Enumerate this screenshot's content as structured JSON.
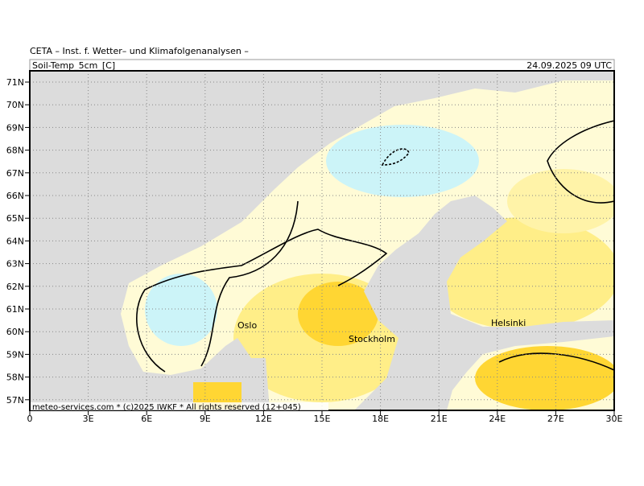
{
  "header": {
    "title": "CETA – Inst. f. Wetter– und Klimafolgenanalysen –",
    "parameter": "Soil-Temp_5cm_[C]",
    "valid_time": "24.09.2025 09 UTC"
  },
  "map": {
    "lat_labels": [
      "71N",
      "70N",
      "69N",
      "68N",
      "67N",
      "66N",
      "65N",
      "64N",
      "63N",
      "62N",
      "61N",
      "60N",
      "59N",
      "58N",
      "57N"
    ],
    "lon_labels": [
      "0",
      "3E",
      "6E",
      "9E",
      "12E",
      "15E",
      "18E",
      "21E",
      "24E",
      "27E",
      "30E"
    ],
    "cities": [
      "Oslo",
      "Stockholm",
      "Helsinki"
    ],
    "footer": "meteo-services.com * (c)2025 IWKF * All rights reserved (12+045)"
  }
}
